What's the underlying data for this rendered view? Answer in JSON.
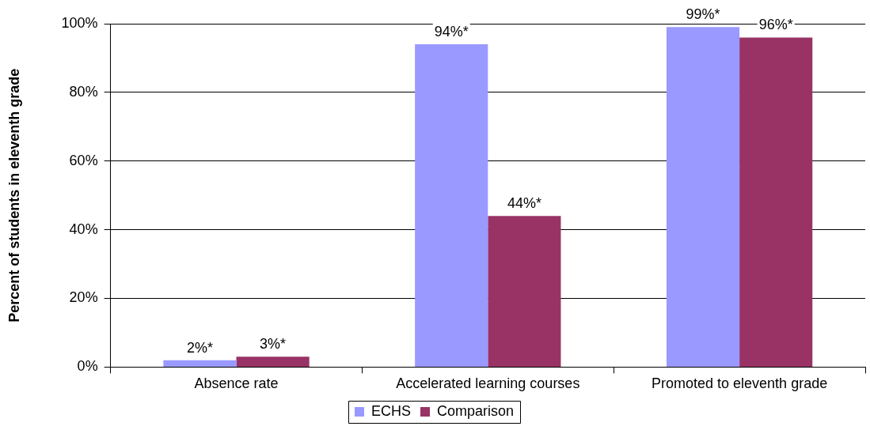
{
  "chart_data": {
    "type": "bar",
    "ylabel": "Percent of students in eleventh grade",
    "categories": [
      "Absence rate",
      "Accelerated learning courses",
      "Promoted to eleventh grade"
    ],
    "series": [
      {
        "name": "ECHS",
        "color": "#9999ff",
        "values": [
          2,
          94,
          99
        ],
        "value_labels": [
          "2%*",
          "94%*",
          "99%*"
        ]
      },
      {
        "name": "Comparison",
        "color": "#993366",
        "values": [
          3,
          44,
          96
        ],
        "value_labels": [
          "3%*",
          "44%*",
          "96%*"
        ]
      }
    ],
    "ylim": [
      0,
      100
    ],
    "yticks": [
      {
        "value": 0,
        "label": "0%"
      },
      {
        "value": 20,
        "label": "20%"
      },
      {
        "value": 40,
        "label": "40%"
      },
      {
        "value": 60,
        "label": "60%"
      },
      {
        "value": 80,
        "label": "80%"
      },
      {
        "value": 100,
        "label": "100%"
      }
    ],
    "grid": "y",
    "legend": "bottom"
  }
}
